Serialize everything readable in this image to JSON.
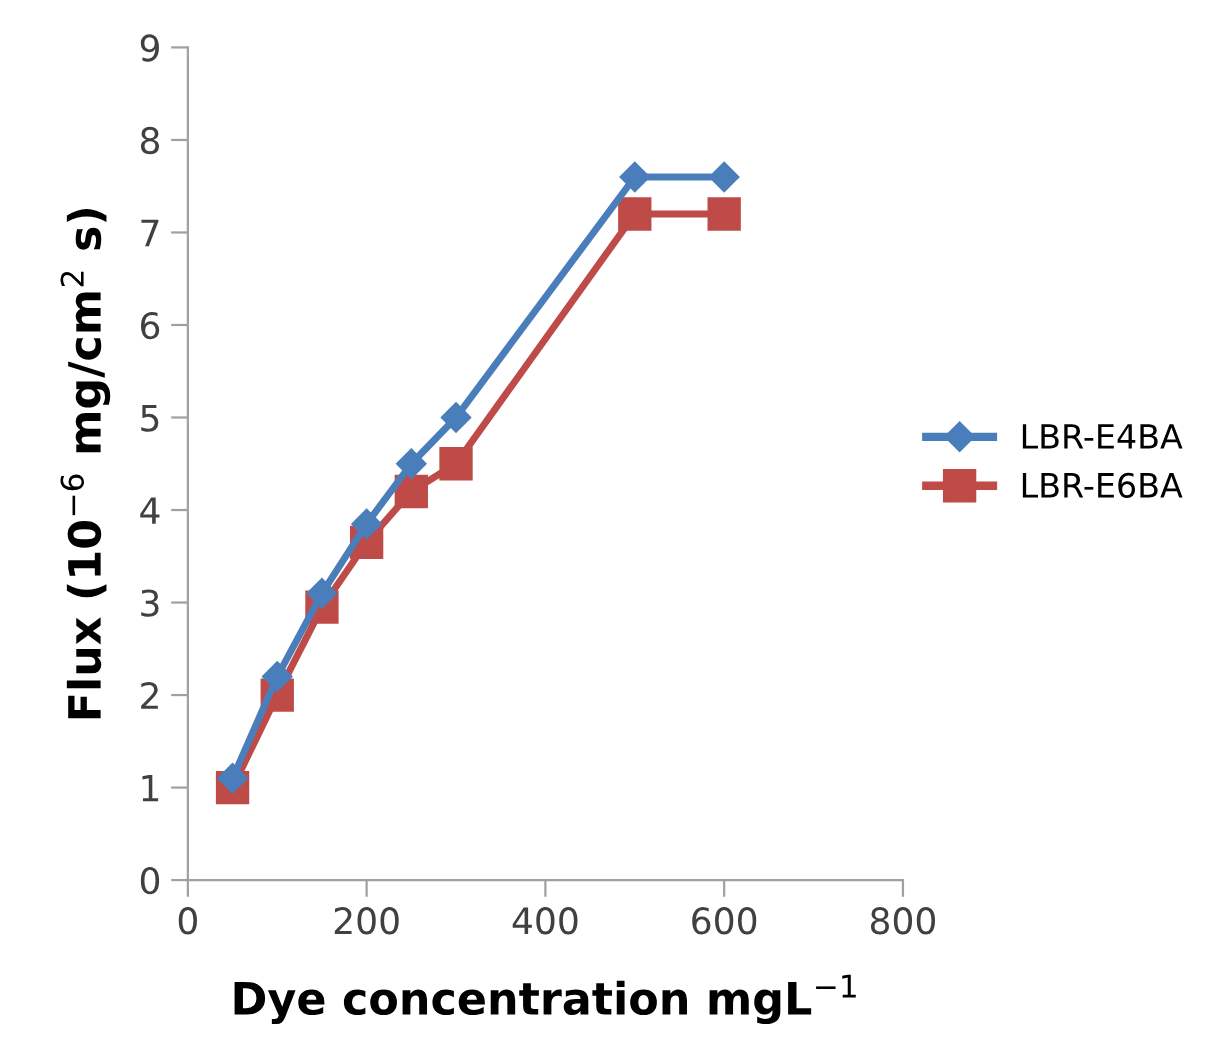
{
  "chart_data": {
    "type": "line",
    "xlabel": "Dye concentration mgL$^{−1}$",
    "ylabel": "Flux (10$^{−6}$ mg/cm$^{2}$ s)",
    "x": [
      50,
      100,
      150,
      200,
      250,
      300,
      500,
      600
    ],
    "series": [
      {
        "name": "LBR-E4BA",
        "color": "#4a7ebb",
        "marker": "diamond",
        "values": [
          1.1,
          2.2,
          3.1,
          3.85,
          4.5,
          5.0,
          7.6,
          7.6
        ]
      },
      {
        "name": "LBR-E6BA",
        "color": "#be4b48",
        "marker": "square",
        "values": [
          1.0,
          2.0,
          2.95,
          3.65,
          4.2,
          4.5,
          7.2,
          7.2
        ]
      }
    ],
    "xlim": [
      0,
      800
    ],
    "xticks": [
      0,
      200,
      400,
      600,
      800
    ],
    "ylim": [
      0,
      9
    ],
    "yticks": [
      0,
      1,
      2,
      3,
      4,
      5,
      6,
      7,
      8,
      9
    ],
    "grid": false,
    "legend": "right",
    "line_style": "solid"
  }
}
